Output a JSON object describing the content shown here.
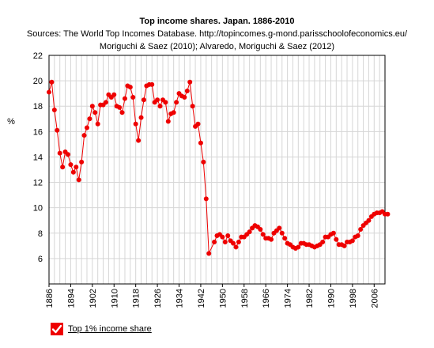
{
  "header": {
    "title": "Top income shares. Japan. 1886-2010",
    "subtitle_line1": "Sources: The World Top Incomes Database. http://topincomes.g-mond.parisschoolofeconomics.eu/",
    "subtitle_line2": "Moriguchi & Saez (2010); Alvaredo, Moriguchi & Saez (2012)"
  },
  "legend": {
    "label": "Top 1% income share",
    "checked": true
  },
  "chart_data": {
    "type": "line",
    "title": "Top income shares. Japan. 1886-2010",
    "xlabel": "",
    "ylabel": "%",
    "xlim": [
      1886,
      2010
    ],
    "ylim": [
      4,
      22
    ],
    "yticks": [
      6,
      8,
      10,
      12,
      14,
      16,
      18,
      20,
      22
    ],
    "xticks": [
      1886,
      1894,
      1902,
      1910,
      1918,
      1926,
      1934,
      1942,
      1950,
      1958,
      1966,
      1974,
      1982,
      1990,
      1998,
      2006
    ],
    "grid": true,
    "legend_position": "bottom-left",
    "series": [
      {
        "name": "Top 1% income share",
        "color": "#ee0000",
        "points": [
          [
            1886,
            19.1
          ],
          [
            1887,
            19.9
          ],
          [
            1888,
            17.7
          ],
          [
            1889,
            16.1
          ],
          [
            1890,
            14.3
          ],
          [
            1891,
            13.2
          ],
          [
            1892,
            14.4
          ],
          [
            1893,
            14.2
          ],
          [
            1894,
            13.4
          ],
          [
            1895,
            12.8
          ],
          [
            1896,
            13.2
          ],
          [
            1897,
            12.2
          ],
          [
            1898,
            13.6
          ],
          [
            1899,
            15.7
          ],
          [
            1900,
            16.3
          ],
          [
            1901,
            17.0
          ],
          [
            1902,
            18.0
          ],
          [
            1903,
            17.5
          ],
          [
            1904,
            16.6
          ],
          [
            1905,
            18.1
          ],
          [
            1906,
            18.1
          ],
          [
            1907,
            18.3
          ],
          [
            1908,
            18.9
          ],
          [
            1909,
            18.7
          ],
          [
            1910,
            18.9
          ],
          [
            1911,
            18.0
          ],
          [
            1912,
            17.9
          ],
          [
            1913,
            17.5
          ],
          [
            1914,
            18.6
          ],
          [
            1915,
            19.6
          ],
          [
            1916,
            19.5
          ],
          [
            1917,
            18.7
          ],
          [
            1918,
            16.6
          ],
          [
            1919,
            15.3
          ],
          [
            1920,
            17.1
          ],
          [
            1921,
            18.5
          ],
          [
            1922,
            19.6
          ],
          [
            1923,
            19.7
          ],
          [
            1924,
            19.7
          ],
          [
            1925,
            18.3
          ],
          [
            1926,
            18.5
          ],
          [
            1927,
            18.0
          ],
          [
            1928,
            18.5
          ],
          [
            1929,
            18.3
          ],
          [
            1930,
            16.8
          ],
          [
            1931,
            17.4
          ],
          [
            1932,
            17.5
          ],
          [
            1933,
            18.3
          ],
          [
            1934,
            19.0
          ],
          [
            1935,
            18.8
          ],
          [
            1936,
            18.7
          ],
          [
            1937,
            19.2
          ],
          [
            1938,
            19.9
          ],
          [
            1939,
            18.0
          ],
          [
            1940,
            16.4
          ],
          [
            1941,
            16.6
          ],
          [
            1942,
            15.1
          ],
          [
            1943,
            13.6
          ],
          [
            1944,
            10.7
          ],
          [
            1945,
            6.4
          ],
          [
            1947,
            7.3
          ],
          [
            1948,
            7.8
          ],
          [
            1949,
            7.9
          ],
          [
            1950,
            7.7
          ],
          [
            1951,
            7.3
          ],
          [
            1952,
            7.8
          ],
          [
            1953,
            7.4
          ],
          [
            1954,
            7.2
          ],
          [
            1955,
            6.9
          ],
          [
            1956,
            7.3
          ],
          [
            1957,
            7.7
          ],
          [
            1958,
            7.7
          ],
          [
            1959,
            7.9
          ],
          [
            1960,
            8.1
          ],
          [
            1961,
            8.4
          ],
          [
            1962,
            8.6
          ],
          [
            1963,
            8.5
          ],
          [
            1964,
            8.3
          ],
          [
            1965,
            7.9
          ],
          [
            1966,
            7.6
          ],
          [
            1967,
            7.6
          ],
          [
            1968,
            7.5
          ],
          [
            1969,
            8.0
          ],
          [
            1970,
            8.2
          ],
          [
            1971,
            8.4
          ],
          [
            1972,
            8.0
          ],
          [
            1973,
            7.6
          ],
          [
            1974,
            7.2
          ],
          [
            1975,
            7.1
          ],
          [
            1976,
            6.9
          ],
          [
            1977,
            6.8
          ],
          [
            1978,
            6.9
          ],
          [
            1979,
            7.2
          ],
          [
            1980,
            7.2
          ],
          [
            1981,
            7.1
          ],
          [
            1982,
            7.1
          ],
          [
            1983,
            7.0
          ],
          [
            1984,
            6.9
          ],
          [
            1985,
            7.0
          ],
          [
            1986,
            7.1
          ],
          [
            1987,
            7.3
          ],
          [
            1988,
            7.7
          ],
          [
            1989,
            7.7
          ],
          [
            1990,
            7.9
          ],
          [
            1991,
            8.0
          ],
          [
            1992,
            7.5
          ],
          [
            1993,
            7.1
          ],
          [
            1994,
            7.1
          ],
          [
            1995,
            7.0
          ],
          [
            1996,
            7.3
          ],
          [
            1997,
            7.3
          ],
          [
            1998,
            7.4
          ],
          [
            1999,
            7.7
          ],
          [
            2000,
            7.8
          ],
          [
            2001,
            8.3
          ],
          [
            2002,
            8.6
          ],
          [
            2003,
            8.8
          ],
          [
            2004,
            9.0
          ],
          [
            2005,
            9.3
          ],
          [
            2006,
            9.5
          ],
          [
            2007,
            9.6
          ],
          [
            2008,
            9.6
          ],
          [
            2009,
            9.7
          ],
          [
            2010,
            9.5
          ],
          [
            2011,
            9.5
          ]
        ]
      }
    ]
  }
}
